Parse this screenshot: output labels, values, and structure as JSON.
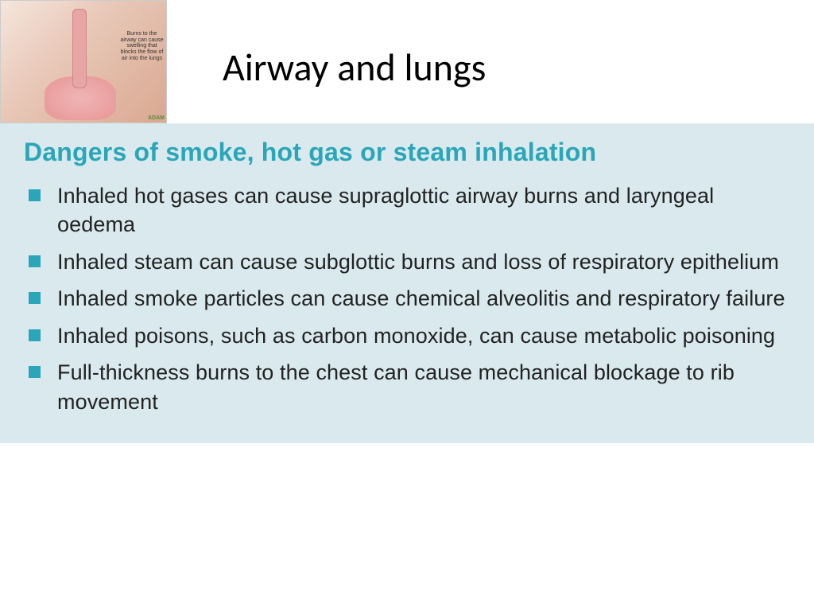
{
  "colors": {
    "page_bg": "#ffffff",
    "panel_bg": "#d9e9ed",
    "heading_color": "#2aa6b8",
    "body_text": "#222222",
    "bullet_color": "#2aa6b8",
    "title_color": "#000000"
  },
  "header": {
    "title": "Airway and lungs",
    "thumb_caption": "Burns to the airway can cause swelling that blocks the flow of air into the lungs",
    "thumb_credit": "ADAM"
  },
  "panel": {
    "heading": "Dangers of smoke, hot gas or steam inhalation",
    "bullets": [
      "Inhaled hot gases can cause supraglottic airway burns and laryngeal oedema",
      "Inhaled steam can cause subglottic burns and loss of respiratory epithelium",
      "Inhaled smoke particles can cause chemical alveolitis and respiratory failure",
      "Inhaled poisons, such as carbon monoxide, can cause metabolic poisoning",
      "Full-thickness burns to the chest can cause mechanical blockage to rib movement"
    ]
  },
  "typography": {
    "title_fontsize": 48,
    "heading_fontsize": 32,
    "body_fontsize": 27
  }
}
